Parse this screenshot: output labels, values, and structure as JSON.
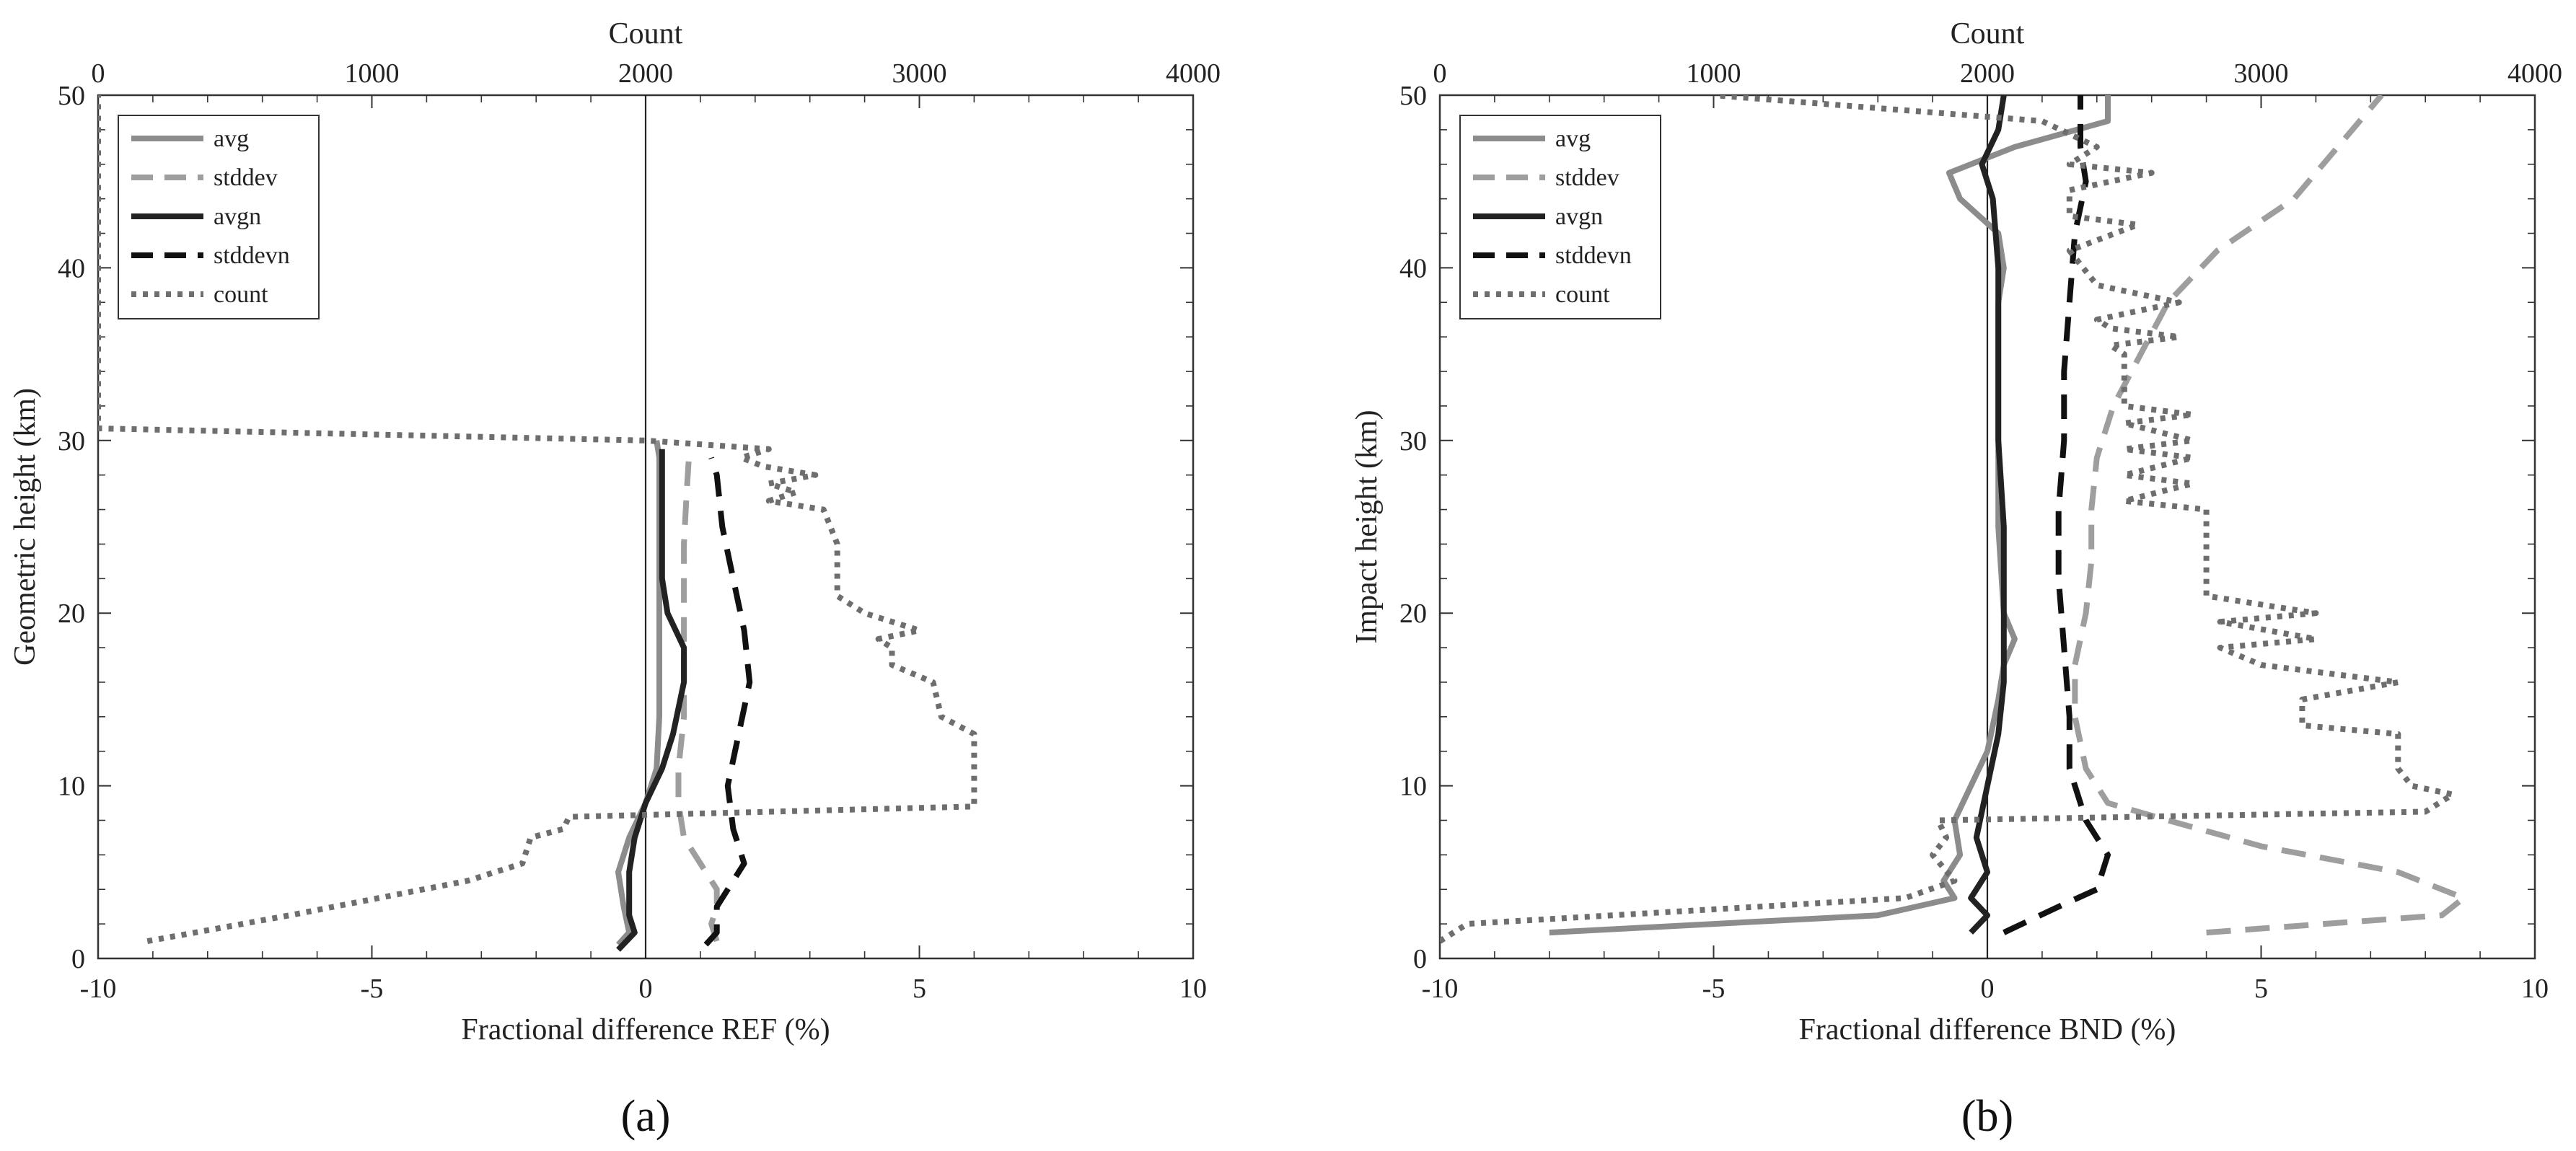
{
  "chart_data": [
    {
      "type": "line",
      "panel_label": "(a)",
      "xlabel": "Fractional difference REF (%)",
      "ylabel": "Geometric height (km)",
      "top_xlabel": "Count",
      "xlim": [
        -10,
        10
      ],
      "ylim": [
        0,
        50
      ],
      "top_xlim": [
        0,
        4000
      ],
      "x_ticks": [
        "-10",
        "-5",
        "0",
        "5",
        "10"
      ],
      "y_ticks": [
        "0",
        "10",
        "20",
        "30",
        "40",
        "50"
      ],
      "top_x_ticks": [
        "0",
        "1000",
        "2000",
        "3000",
        "4000"
      ],
      "grid": false,
      "legend_position": "top-left",
      "legend": [
        "avg",
        "stddev",
        "avgn",
        "stddevn",
        "count"
      ],
      "series": [
        {
          "name": "avg",
          "axis": "bottom",
          "color": "#8c8c8c",
          "dash": "solid",
          "points": [
            [
              -0.5,
              0.8
            ],
            [
              -0.3,
              1.5
            ],
            [
              -0.4,
              3
            ],
            [
              -0.5,
              5
            ],
            [
              -0.3,
              7
            ],
            [
              0,
              9
            ],
            [
              0.2,
              11
            ],
            [
              0.25,
              14
            ],
            [
              0.25,
              17
            ],
            [
              0.25,
              20
            ],
            [
              0.25,
              23
            ],
            [
              0.25,
              26
            ],
            [
              0.25,
              29
            ],
            [
              0.2,
              30
            ]
          ]
        },
        {
          "name": "stddev",
          "axis": "bottom",
          "color": "#9e9e9e",
          "dash": "dashed",
          "points": [
            [
              1.3,
              1
            ],
            [
              1.2,
              2
            ],
            [
              1.3,
              3
            ],
            [
              1.3,
              4
            ],
            [
              1,
              5.5
            ],
            [
              0.7,
              7
            ],
            [
              0.6,
              9
            ],
            [
              0.6,
              11
            ],
            [
              0.7,
              14
            ],
            [
              0.7,
              17
            ],
            [
              0.7,
              20
            ],
            [
              0.7,
              24
            ],
            [
              0.75,
              27
            ],
            [
              0.8,
              29.5
            ]
          ]
        },
        {
          "name": "avgn",
          "axis": "bottom",
          "color": "#222222",
          "dash": "solid",
          "points": [
            [
              -0.5,
              0.5
            ],
            [
              -0.2,
              1.5
            ],
            [
              -0.3,
              2.5
            ],
            [
              -0.3,
              5
            ],
            [
              -0.2,
              7
            ],
            [
              0,
              9
            ],
            [
              0.3,
              11
            ],
            [
              0.5,
              13
            ],
            [
              0.7,
              16
            ],
            [
              0.7,
              18
            ],
            [
              0.4,
              20
            ],
            [
              0.3,
              22
            ],
            [
              0.3,
              25
            ],
            [
              0.3,
              28
            ],
            [
              0.3,
              29.5
            ]
          ]
        },
        {
          "name": "stddevn",
          "axis": "bottom",
          "color": "#111111",
          "dash": "dashed",
          "points": [
            [
              1.1,
              0.8
            ],
            [
              1.3,
              1.5
            ],
            [
              1.3,
              3
            ],
            [
              1.8,
              5.5
            ],
            [
              1.6,
              7.5
            ],
            [
              1.5,
              10
            ],
            [
              1.7,
              13
            ],
            [
              1.9,
              16
            ],
            [
              1.8,
              19
            ],
            [
              1.6,
              22
            ],
            [
              1.4,
              25
            ],
            [
              1.3,
              28
            ],
            [
              1.2,
              29
            ]
          ]
        },
        {
          "name": "count",
          "axis": "top",
          "color": "#6e6e6e",
          "dash": "dotted",
          "points": [
            [
              180,
              1
            ],
            [
              700,
              2.5
            ],
            [
              1350,
              4.5
            ],
            [
              1550,
              5.5
            ],
            [
              1580,
              7
            ],
            [
              1700,
              7.5
            ],
            [
              1720,
              8.2
            ],
            [
              3200,
              8.8
            ],
            [
              3200,
              10
            ],
            [
              3200,
              13
            ],
            [
              3080,
              14
            ],
            [
              3050,
              16
            ],
            [
              2900,
              17
            ],
            [
              2900,
              18
            ],
            [
              2850,
              18.5
            ],
            [
              3000,
              19
            ],
            [
              2800,
              20
            ],
            [
              2700,
              21
            ],
            [
              2700,
              22
            ],
            [
              2700,
              24
            ],
            [
              2650,
              26
            ],
            [
              2450,
              26.5
            ],
            [
              2550,
              27
            ],
            [
              2450,
              27.5
            ],
            [
              2620,
              28
            ],
            [
              2430,
              28.5
            ],
            [
              2350,
              29
            ],
            [
              2450,
              29.5
            ],
            [
              2000,
              30
            ],
            [
              0,
              30.7
            ],
            [
              0,
              50
            ]
          ]
        }
      ]
    },
    {
      "type": "line",
      "panel_label": "(b)",
      "xlabel": "Fractional difference BND (%)",
      "ylabel": "Impact height (km)",
      "top_xlabel": "Count",
      "xlim": [
        -10,
        10
      ],
      "ylim": [
        0,
        50
      ],
      "top_xlim": [
        0,
        4000
      ],
      "x_ticks": [
        "-10",
        "-5",
        "0",
        "5",
        "10"
      ],
      "y_ticks": [
        "0",
        "10",
        "20",
        "30",
        "40",
        "50"
      ],
      "top_x_ticks": [
        "0",
        "1000",
        "2000",
        "3000",
        "4000"
      ],
      "grid": false,
      "legend_position": "top-left",
      "legend": [
        "avg",
        "stddev",
        "avgn",
        "stddevn",
        "count"
      ],
      "series": [
        {
          "name": "avg",
          "axis": "bottom",
          "color": "#8c8c8c",
          "dash": "solid",
          "points": [
            [
              -8,
              1.5
            ],
            [
              -2,
              2.5
            ],
            [
              -0.6,
              3.5
            ],
            [
              -0.8,
              4.5
            ],
            [
              -0.5,
              6
            ],
            [
              -0.6,
              8
            ],
            [
              -0.3,
              10
            ],
            [
              0,
              12
            ],
            [
              0.2,
              15
            ],
            [
              0.3,
              17
            ],
            [
              0.5,
              18.5
            ],
            [
              0.3,
              20
            ],
            [
              0.2,
              25
            ],
            [
              0.2,
              30
            ],
            [
              0.2,
              35
            ],
            [
              0.2,
              38
            ],
            [
              0.3,
              40
            ],
            [
              0.2,
              42
            ],
            [
              -0.5,
              44
            ],
            [
              -0.7,
              45.5
            ],
            [
              0.5,
              47
            ],
            [
              2.2,
              48.5
            ],
            [
              2.2,
              50
            ]
          ]
        },
        {
          "name": "stddev",
          "axis": "bottom",
          "color": "#9e9e9e",
          "dash": "dashed",
          "points": [
            [
              4,
              1.5
            ],
            [
              8.3,
              2.5
            ],
            [
              8.7,
              3.5
            ],
            [
              7.5,
              5
            ],
            [
              5,
              6.5
            ],
            [
              3.3,
              8
            ],
            [
              2.2,
              9
            ],
            [
              1.8,
              11
            ],
            [
              1.6,
              14
            ],
            [
              1.6,
              17
            ],
            [
              1.8,
              20
            ],
            [
              1.9,
              23
            ],
            [
              1.9,
              26
            ],
            [
              2,
              29
            ],
            [
              2.3,
              32
            ],
            [
              2.8,
              35
            ],
            [
              3.3,
              38
            ],
            [
              4.2,
              41
            ],
            [
              5.6,
              44
            ],
            [
              7.2,
              50
            ]
          ]
        },
        {
          "name": "avgn",
          "axis": "bottom",
          "color": "#222222",
          "dash": "solid",
          "points": [
            [
              -0.3,
              1.5
            ],
            [
              0,
              2.5
            ],
            [
              -0.3,
              3.5
            ],
            [
              0,
              5
            ],
            [
              -0.2,
              7
            ],
            [
              0,
              10
            ],
            [
              0.2,
              13
            ],
            [
              0.3,
              16
            ],
            [
              0.3,
              20
            ],
            [
              0.3,
              25
            ],
            [
              0.2,
              30
            ],
            [
              0.2,
              35
            ],
            [
              0.2,
              40
            ],
            [
              0.1,
              44
            ],
            [
              -0.1,
              46
            ],
            [
              0.2,
              48
            ],
            [
              0.3,
              50
            ]
          ]
        },
        {
          "name": "stddevn",
          "axis": "bottom",
          "color": "#111111",
          "dash": "dashed",
          "points": [
            [
              0.3,
              1.5
            ],
            [
              1.3,
              3
            ],
            [
              2,
              4
            ],
            [
              2.2,
              6
            ],
            [
              1.8,
              8
            ],
            [
              1.5,
              11
            ],
            [
              1.5,
              14
            ],
            [
              1.4,
              18
            ],
            [
              1.3,
              22
            ],
            [
              1.3,
              26
            ],
            [
              1.4,
              30
            ],
            [
              1.4,
              34
            ],
            [
              1.5,
              38
            ],
            [
              1.6,
              42
            ],
            [
              1.8,
              45
            ],
            [
              1.7,
              47
            ],
            [
              1.7,
              50
            ]
          ]
        },
        {
          "name": "count",
          "axis": "top",
          "color": "#6e6e6e",
          "dash": "dotted",
          "points": [
            [
              0,
              1
            ],
            [
              100,
              2
            ],
            [
              1700,
              3.5
            ],
            [
              1880,
              4.5
            ],
            [
              1800,
              6
            ],
            [
              1850,
              7
            ],
            [
              1820,
              8
            ],
            [
              3600,
              8.5
            ],
            [
              3700,
              9.5
            ],
            [
              3550,
              10
            ],
            [
              3500,
              11
            ],
            [
              3500,
              13
            ],
            [
              3150,
              13.5
            ],
            [
              3150,
              15
            ],
            [
              3500,
              16
            ],
            [
              3000,
              17
            ],
            [
              2850,
              18
            ],
            [
              3200,
              18.5
            ],
            [
              2850,
              19.5
            ],
            [
              3200,
              20
            ],
            [
              2800,
              21
            ],
            [
              2800,
              23
            ],
            [
              2800,
              26
            ],
            [
              2500,
              26.5
            ],
            [
              2750,
              27.5
            ],
            [
              2500,
              28
            ],
            [
              2750,
              29
            ],
            [
              2500,
              29.5
            ],
            [
              2750,
              30
            ],
            [
              2500,
              31
            ],
            [
              2750,
              31.5
            ],
            [
              2500,
              32
            ],
            [
              2500,
              33
            ],
            [
              2500,
              35
            ],
            [
              2450,
              35.5
            ],
            [
              2700,
              36
            ],
            [
              2450,
              36.5
            ],
            [
              2400,
              37
            ],
            [
              2700,
              38
            ],
            [
              2400,
              39
            ],
            [
              2350,
              40
            ],
            [
              2300,
              41
            ],
            [
              2550,
              42.5
            ],
            [
              2300,
              43
            ],
            [
              2300,
              44.5
            ],
            [
              2600,
              45.5
            ],
            [
              2300,
              46
            ],
            [
              2400,
              47
            ],
            [
              2200,
              48.5
            ],
            [
              1000,
              50
            ]
          ]
        }
      ]
    }
  ]
}
